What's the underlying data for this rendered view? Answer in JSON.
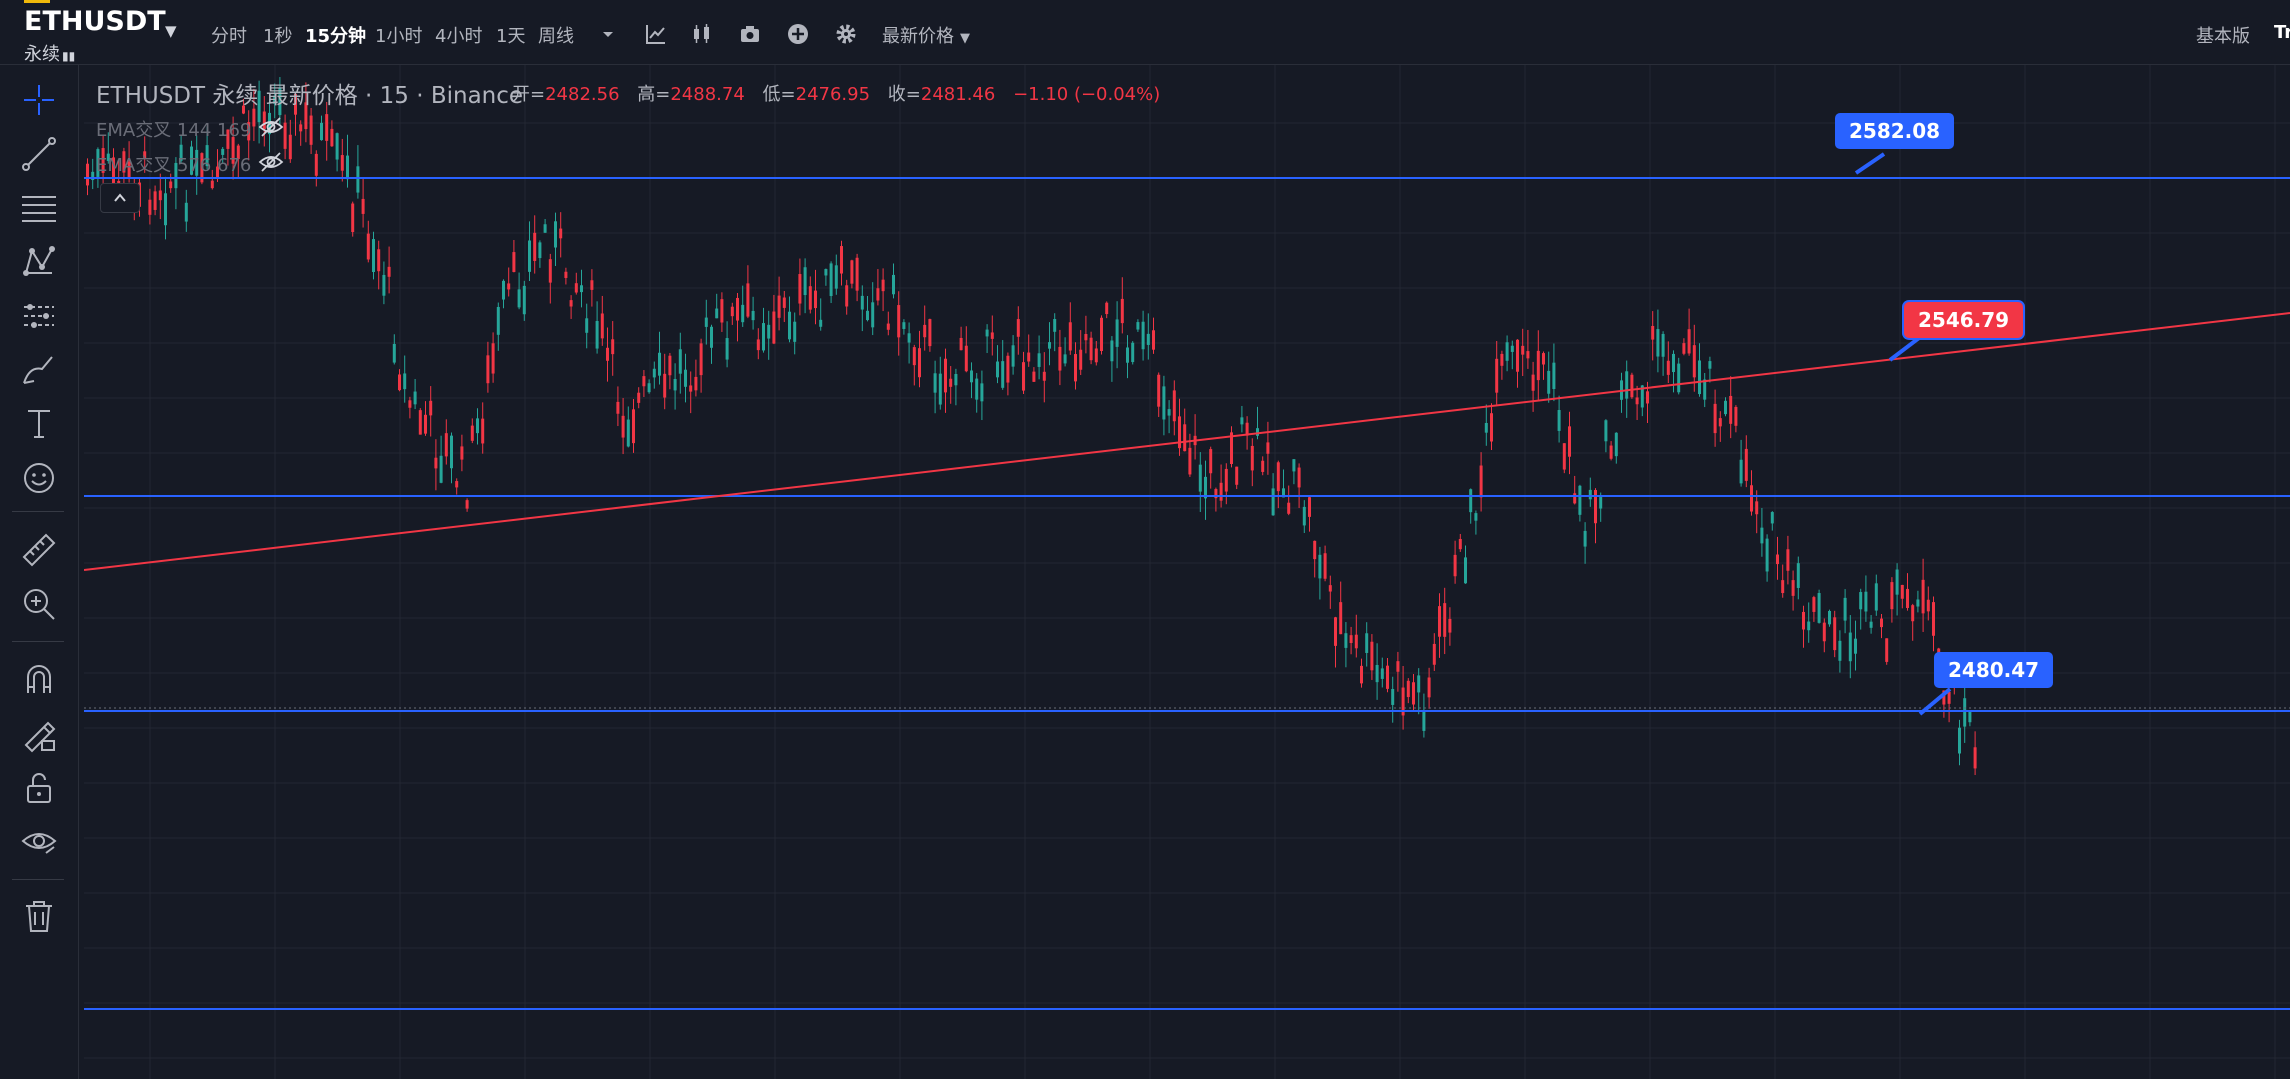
{
  "symbol": {
    "name": "ETHUSDT",
    "sub": "永续"
  },
  "toolbar": {
    "intervals": [
      "分时",
      "1秒",
      "15分钟",
      "1小时",
      "4小时",
      "1天",
      "周线"
    ],
    "active_interval": "15分钟",
    "price_source": "最新价格",
    "basic_label": "基本版",
    "trading_view_label": "Tr"
  },
  "legend": {
    "title": "ETHUSDT 永续 最新价格 · 15 · Binance",
    "open_key": "开=",
    "open": "2482.56",
    "high_key": "高=",
    "high": "2488.74",
    "low_key": "低=",
    "low": "2476.95",
    "close_key": "收=",
    "close": "2481.46",
    "change": "−1.10 (−0.04%)"
  },
  "indicators": [
    {
      "label": "EMA交叉 144 169"
    },
    {
      "label": "EMA交叉 576 676"
    }
  ],
  "drawing_labels": {
    "resistance": "2582.08",
    "trendline": "2546.79",
    "support": "2480.47"
  },
  "colors": {
    "background": "#161a25",
    "up": "#26a69a",
    "down": "#f23645",
    "hline": "#2962ff",
    "trendline": "#f23645",
    "grid": "#232732"
  },
  "icons": {
    "sidebar": [
      "crosshair-icon",
      "trend-line-icon",
      "fib-lines-icon",
      "pattern-icon",
      "forecast-icon",
      "brush-icon",
      "text-icon",
      "emoji-icon",
      "ruler-icon",
      "zoom-in-icon",
      "magnet-icon",
      "lock-draw-icon",
      "unlock-icon",
      "eye-icon",
      "trash-icon"
    ],
    "toolbar": [
      "dropdown-icon",
      "indicators-icon",
      "candles-icon",
      "camera-icon",
      "plus-icon",
      "gear-icon"
    ]
  }
}
